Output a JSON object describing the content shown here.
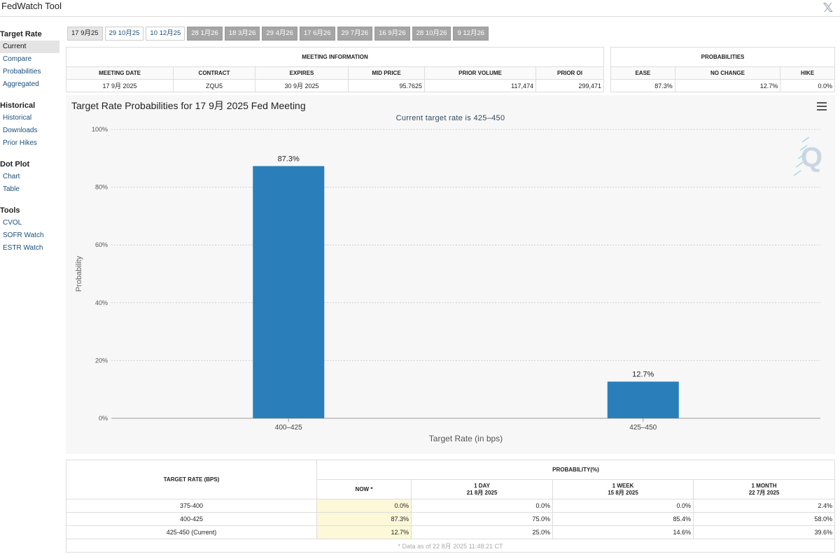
{
  "app": {
    "title": "FedWatch Tool"
  },
  "sidebar": {
    "groups": [
      {
        "heading": "Target Rate",
        "items": [
          "Current",
          "Compare",
          "Probabilities",
          "Aggregated"
        ]
      },
      {
        "heading": "Historical",
        "items": [
          "Historical",
          "Downloads",
          "Prior Hikes"
        ]
      },
      {
        "heading": "Dot Plot",
        "items": [
          "Chart",
          "Table"
        ]
      },
      {
        "heading": "Tools",
        "items": [
          "CVOL",
          "SOFR Watch",
          "ESTR Watch"
        ]
      }
    ]
  },
  "tabs": [
    "17 9月25",
    "29 10月25",
    "10 12月25",
    "28 1月26",
    "18 3月26",
    "29 4月26",
    "17 6月26",
    "29 7月26",
    "16 9月26",
    "28 10月26",
    "9 12月26"
  ],
  "meeting_info": {
    "heading": "MEETING INFORMATION",
    "columns": [
      "MEETING DATE",
      "CONTRACT",
      "EXPIRES",
      "MID PRICE",
      "PRIOR VOLUME",
      "PRIOR OI"
    ],
    "row": [
      "17 9月 2025",
      "ZQU5",
      "30 9月 2025",
      "95.7625",
      "117,474",
      "299,471"
    ]
  },
  "probabilities": {
    "heading": "PROBABILITIES",
    "columns": [
      "EASE",
      "NO CHANGE",
      "HIKE"
    ],
    "row": [
      "87.3%",
      "12.7%",
      "0.0%"
    ]
  },
  "chart": {
    "title": "Target Rate Probabilities for 17 9月 2025 Fed Meeting",
    "subtitle": "Current target rate is 425–450",
    "watermark": "Q",
    "color": "#2a7fba"
  },
  "chart_data": {
    "type": "bar",
    "title": "Target Rate Probabilities for 17 9月 2025 Fed Meeting",
    "subtitle": "Current target rate is 425–450",
    "categories": [
      "400–425",
      "425–450"
    ],
    "values": [
      87.3,
      12.7
    ],
    "data_labels": [
      "87.3%",
      "12.7%"
    ],
    "xlabel": "Target Rate (in bps)",
    "ylabel": "Probability",
    "ylim": [
      0,
      100
    ],
    "yticks": [
      "0%",
      "20%",
      "40%",
      "60%",
      "80%",
      "100%"
    ],
    "grid": true
  },
  "bottom_table": {
    "col1_header": "TARGET RATE (BPS)",
    "group_header": "PROBABILITY(%)",
    "sub_headers": [
      {
        "line1": "NOW *",
        "line2": ""
      },
      {
        "line1": "1 DAY",
        "line2": "21 8月 2025"
      },
      {
        "line1": "1 WEEK",
        "line2": "15 8月 2025"
      },
      {
        "line1": "1 MONTH",
        "line2": "22 7月 2025"
      }
    ],
    "rows": [
      {
        "rate": "375-400",
        "values": [
          "0.0%",
          "0.0%",
          "0.0%",
          "2.4%"
        ]
      },
      {
        "rate": "400-425",
        "values": [
          "87.3%",
          "75.0%",
          "85.4%",
          "58.0%"
        ]
      },
      {
        "rate": "425-450 (Current)",
        "values": [
          "12.7%",
          "25.0%",
          "14.6%",
          "39.6%"
        ]
      }
    ],
    "footnote": "* Data as of 22 8月 2025 11:48:21 CT"
  }
}
